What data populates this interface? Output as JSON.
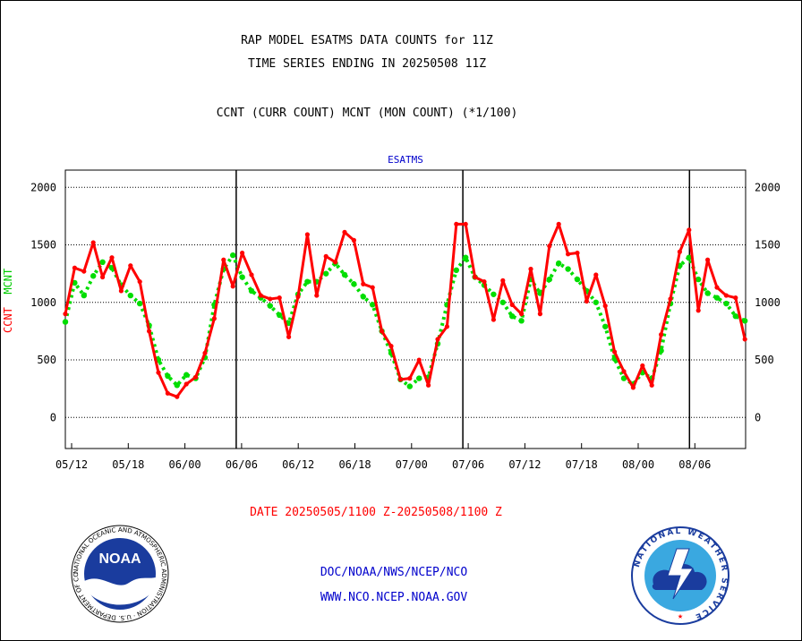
{
  "header": {
    "title1": "RAP MODEL ESATMS DATA COUNTS for 11Z",
    "title2": "TIME SERIES ENDING IN 20250508 11Z",
    "subtitle": "CCNT (CURR COUNT) MCNT (MON COUNT) (*1/100)"
  },
  "footer": {
    "date_range": "DATE 20250505/1100 Z-20250508/1100 Z",
    "link1": "DOC/NOAA/NWS/NCEP/NCO",
    "link2": "WWW.NCO.NCEP.NOAA.GOV"
  },
  "logos": {
    "noaa_text": "NOAA",
    "noaa_ring": "NATIONAL OCEANIC AND ATMOSPHERIC ADMINISTRATION · U.S. DEPARTMENT OF COMMERCE",
    "nws_ring": "NATIONAL WEATHER SERVICE"
  },
  "chart_data": {
    "type": "line",
    "title": "ESATMS",
    "ylabel_ccnt": "CCNT",
    "ylabel_mcnt": "MCNT",
    "ylim": [
      -270,
      2150
    ],
    "yticks": [
      0,
      500,
      1000,
      1500,
      2000
    ],
    "xticks": [
      "05/12",
      "05/18",
      "06/00",
      "06/06",
      "06/12",
      "06/18",
      "07/00",
      "07/06",
      "07/12",
      "07/18",
      "08/00",
      "08/06"
    ],
    "grid_y": true,
    "colors": {
      "ccnt": "#ff0000",
      "mcnt": "#00dd00",
      "grid": "#000000"
    },
    "series": [
      {
        "name": "CCNT",
        "values": [
          900,
          1300,
          1270,
          1520,
          1220,
          1390,
          1100,
          1320,
          1180,
          750,
          390,
          210,
          180,
          290,
          350,
          560,
          860,
          1370,
          1140,
          1430,
          1240,
          1060,
          1030,
          1040,
          700,
          1050,
          1590,
          1060,
          1400,
          1350,
          1610,
          1540,
          1160,
          1130,
          750,
          620,
          330,
          340,
          500,
          280,
          680,
          790,
          1680,
          1680,
          1220,
          1180,
          850,
          1190,
          980,
          900,
          1290,
          900,
          1490,
          1680,
          1420,
          1430,
          1010,
          1240,
          970,
          570,
          400,
          260,
          450,
          280,
          720,
          1030,
          1440,
          1630,
          930,
          1370,
          1130,
          1060,
          1040,
          680
        ]
      },
      {
        "name": "MCNT",
        "values": [
          830,
          1170,
          1060,
          1230,
          1350,
          1300,
          1150,
          1060,
          990,
          800,
          500,
          360,
          280,
          370,
          340,
          520,
          980,
          1290,
          1410,
          1220,
          1100,
          1040,
          970,
          890,
          820,
          1070,
          1180,
          1180,
          1250,
          1340,
          1240,
          1160,
          1050,
          980,
          750,
          560,
          330,
          270,
          340,
          350,
          640,
          980,
          1280,
          1390,
          1220,
          1150,
          1070,
          1000,
          880,
          840,
          1200,
          1080,
          1200,
          1340,
          1290,
          1200,
          1100,
          1000,
          790,
          510,
          340,
          290,
          390,
          340,
          580,
          990,
          1320,
          1390,
          1200,
          1080,
          1040,
          990,
          880,
          840
        ]
      }
    ]
  }
}
